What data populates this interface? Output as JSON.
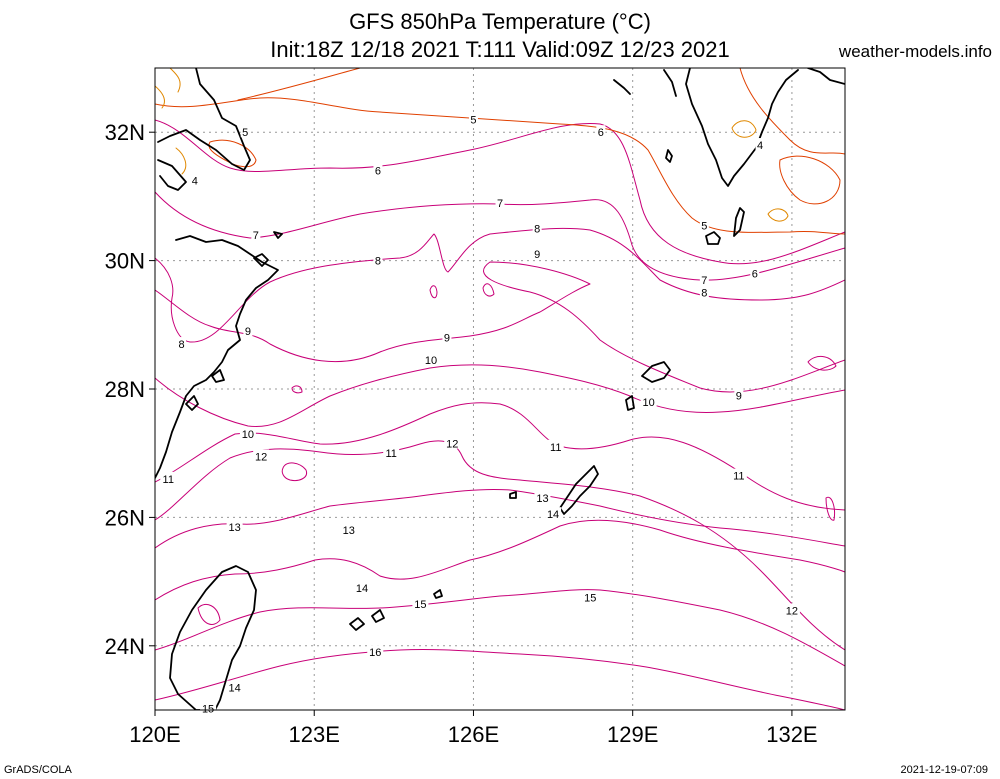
{
  "title": {
    "line1": "GFS 850hPa Temperature (°C)",
    "line2": "Init:18Z 12/18 2021 T:111 Valid:09Z 12/23 2021"
  },
  "site": "weather-models.info",
  "credit": "GrADS/COLA",
  "timestamp": "2021-12-19-07:09",
  "map": {
    "lon_range": [
      120,
      133
    ],
    "lat_range": [
      23,
      33
    ],
    "x_ticks": [
      {
        "lon": 120,
        "label": "120E"
      },
      {
        "lon": 123,
        "label": "123E"
      },
      {
        "lon": 126,
        "label": "126E"
      },
      {
        "lon": 129,
        "label": "129E"
      },
      {
        "lon": 132,
        "label": "132E"
      }
    ],
    "y_ticks": [
      {
        "lat": 32,
        "label": "32N"
      },
      {
        "lat": 30,
        "label": "30N"
      },
      {
        "lat": 28,
        "label": "28N"
      },
      {
        "lat": 26,
        "label": "26N"
      },
      {
        "lat": 24,
        "label": "24N"
      }
    ],
    "colors": {
      "magenta": "#c80078",
      "red": "#e04000",
      "orange": "#e08800",
      "coast": "#000000",
      "grid": "#999999"
    },
    "contour_labels": [
      {
        "text": "5",
        "lon": 121.7,
        "lat": 32.0
      },
      {
        "text": "4",
        "lon": 120.75,
        "lat": 31.25
      },
      {
        "text": "5",
        "lon": 126.0,
        "lat": 32.2
      },
      {
        "text": "6",
        "lon": 128.4,
        "lat": 32.0
      },
      {
        "text": "6",
        "lon": 124.2,
        "lat": 31.4
      },
      {
        "text": "7",
        "lon": 121.9,
        "lat": 30.4
      },
      {
        "text": "7",
        "lon": 126.5,
        "lat": 30.9
      },
      {
        "text": "8",
        "lon": 127.2,
        "lat": 30.5
      },
      {
        "text": "9",
        "lon": 127.2,
        "lat": 30.1
      },
      {
        "text": "8",
        "lon": 124.2,
        "lat": 30.0
      },
      {
        "text": "4",
        "lon": 131.4,
        "lat": 31.8
      },
      {
        "text": "5",
        "lon": 130.35,
        "lat": 30.55
      },
      {
        "text": "6",
        "lon": 131.3,
        "lat": 29.8
      },
      {
        "text": "7",
        "lon": 130.35,
        "lat": 29.7
      },
      {
        "text": "8",
        "lon": 130.35,
        "lat": 29.5
      },
      {
        "text": "9",
        "lon": 121.75,
        "lat": 28.9
      },
      {
        "text": "8",
        "lon": 120.5,
        "lat": 28.7
      },
      {
        "text": "9",
        "lon": 125.5,
        "lat": 28.8
      },
      {
        "text": "10",
        "lon": 125.2,
        "lat": 28.45
      },
      {
        "text": "9",
        "lon": 131.0,
        "lat": 27.9
      },
      {
        "text": "10",
        "lon": 129.3,
        "lat": 27.8
      },
      {
        "text": "10",
        "lon": 121.75,
        "lat": 27.3
      },
      {
        "text": "12",
        "lon": 125.6,
        "lat": 27.15
      },
      {
        "text": "11",
        "lon": 124.45,
        "lat": 27.0
      },
      {
        "text": "11",
        "lon": 127.55,
        "lat": 27.1
      },
      {
        "text": "12",
        "lon": 122.0,
        "lat": 26.95
      },
      {
        "text": "11",
        "lon": 120.25,
        "lat": 26.6
      },
      {
        "text": "11",
        "lon": 131.0,
        "lat": 26.65
      },
      {
        "text": "13",
        "lon": 127.3,
        "lat": 26.3
      },
      {
        "text": "14",
        "lon": 127.5,
        "lat": 26.05
      },
      {
        "text": "13",
        "lon": 121.5,
        "lat": 25.85
      },
      {
        "text": "13",
        "lon": 123.65,
        "lat": 25.8
      },
      {
        "text": "14",
        "lon": 123.9,
        "lat": 24.9
      },
      {
        "text": "15",
        "lon": 125.0,
        "lat": 24.65
      },
      {
        "text": "15",
        "lon": 128.2,
        "lat": 24.75
      },
      {
        "text": "12",
        "lon": 132.0,
        "lat": 24.55
      },
      {
        "text": "16",
        "lon": 124.15,
        "lat": 23.9
      },
      {
        "text": "14",
        "lon": 121.5,
        "lat": 23.35
      },
      {
        "text": "15",
        "lon": 121.0,
        "lat": 23.02
      }
    ]
  }
}
